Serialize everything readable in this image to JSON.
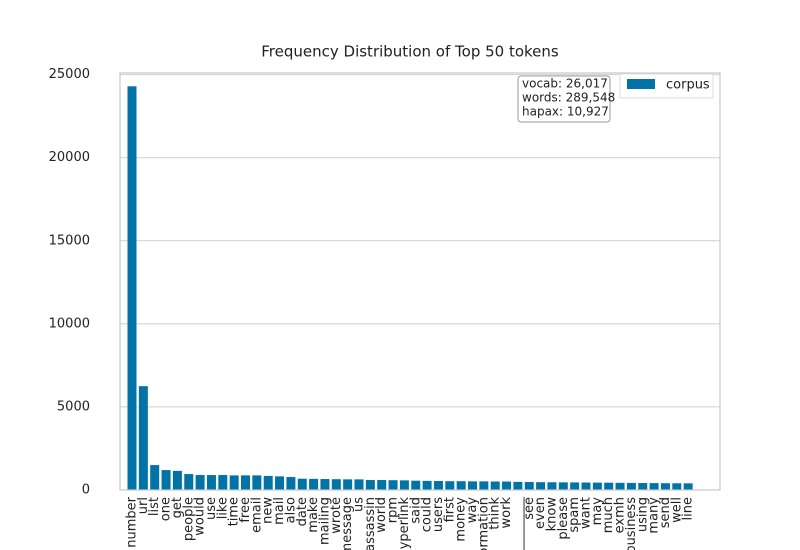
{
  "chart_data": {
    "type": "bar",
    "title": "Frequency Distribution of Top 50 tokens",
    "categories": [
      "number",
      "url",
      "list",
      "one",
      "get",
      "people",
      "would",
      "use",
      "like",
      "time",
      "free",
      "email",
      "new",
      "mail",
      "also",
      "date",
      "make",
      "mailing",
      "wrote",
      "message",
      "us",
      "assassin",
      "world",
      "rpm",
      "hyperlink",
      "said",
      "could",
      "users",
      "first",
      "money",
      "way",
      "information",
      "think",
      "work",
      "____________",
      "see",
      "even",
      "know",
      "please",
      "spam",
      "want",
      "may",
      "much",
      "exmh",
      "business",
      "using",
      "many",
      "send",
      "well",
      "line"
    ],
    "series": [
      {
        "name": "corpus",
        "color": "#0173a7",
        "values": [
          24300,
          6250,
          1500,
          1200,
          1150,
          960,
          900,
          900,
          900,
          880,
          880,
          880,
          850,
          820,
          780,
          680,
          670,
          660,
          650,
          640,
          640,
          600,
          600,
          590,
          580,
          560,
          550,
          540,
          530,
          530,
          520,
          520,
          510,
          510,
          490,
          480,
          470,
          465,
          460,
          455,
          450,
          445,
          440,
          430,
          425,
          420,
          415,
          410,
          405,
          400
        ]
      }
    ],
    "annotations": [
      "vocab: 26,017",
      "words: 289,548",
      "hapax: 10,927"
    ],
    "ylim": [
      0,
      25100
    ],
    "yticks": [
      0,
      5000,
      10000,
      15000,
      20000,
      25000
    ],
    "grid": true,
    "legend": "upper right"
  }
}
